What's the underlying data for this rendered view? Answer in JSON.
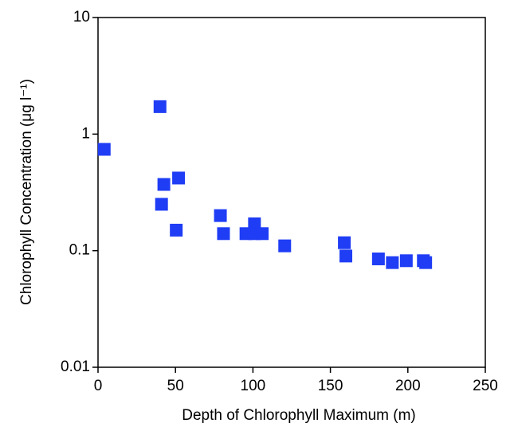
{
  "chart_data": {
    "type": "scatter",
    "x_label": "Depth of Chlorophyll Maximum (m)",
    "y_label": "Chlorophyll Concentration (μg l⁻¹)",
    "x": [
      4,
      40,
      42.5,
      41,
      52,
      50.5,
      79,
      81,
      95.5,
      101,
      101,
      106,
      120.5,
      159,
      160,
      181,
      190,
      199,
      210,
      211.5
    ],
    "values": [
      0.74,
      1.72,
      0.37,
      0.25,
      0.42,
      0.15,
      0.2,
      0.14,
      0.14,
      0.17,
      0.14,
      0.14,
      0.11,
      0.117,
      0.09,
      0.085,
      0.079,
      0.082,
      0.082,
      0.079
    ],
    "color": "#1f3df5",
    "xlim": [
      0,
      250
    ],
    "xticks": [
      0,
      50,
      100,
      150,
      200,
      250
    ],
    "ylim": [
      0.01,
      10
    ],
    "yticks": [
      0.01,
      0.1,
      1,
      10
    ],
    "y_log": true
  }
}
